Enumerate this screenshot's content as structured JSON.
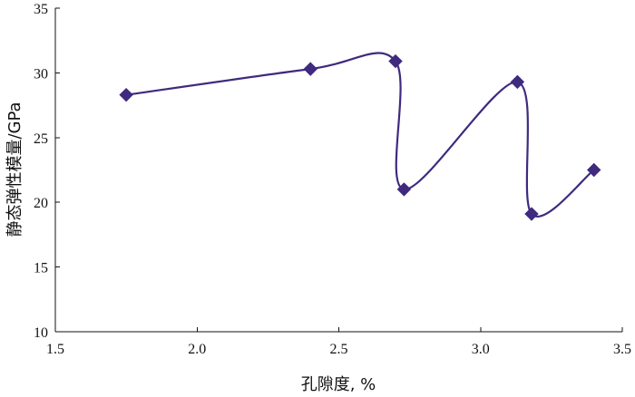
{
  "chart_data": {
    "type": "scatter",
    "title": "",
    "xlabel": "孔隙度, %",
    "ylabel": "静态弹性模量/GPa",
    "xlim": [
      1.5,
      3.5
    ],
    "ylim": [
      10,
      35
    ],
    "xticks": [
      1.5,
      2.0,
      2.5,
      3.0,
      3.5
    ],
    "xtick_labels": [
      "1.5",
      "2.0",
      "2.5",
      "3.0",
      "3.5"
    ],
    "yticks": [
      10,
      15,
      20,
      25,
      30,
      35
    ],
    "ytick_labels": [
      "10",
      "15",
      "20",
      "25",
      "30",
      "35"
    ],
    "grid": false,
    "legend": "none",
    "series": [
      {
        "marker": "diamond",
        "color": "#3f2a7e",
        "line": "smooth",
        "x": [
          1.75,
          2.4,
          2.7,
          2.73,
          3.13,
          3.18,
          3.4
        ],
        "y": [
          28.3,
          30.3,
          30.9,
          21.0,
          29.3,
          19.1,
          22.5
        ]
      }
    ]
  }
}
